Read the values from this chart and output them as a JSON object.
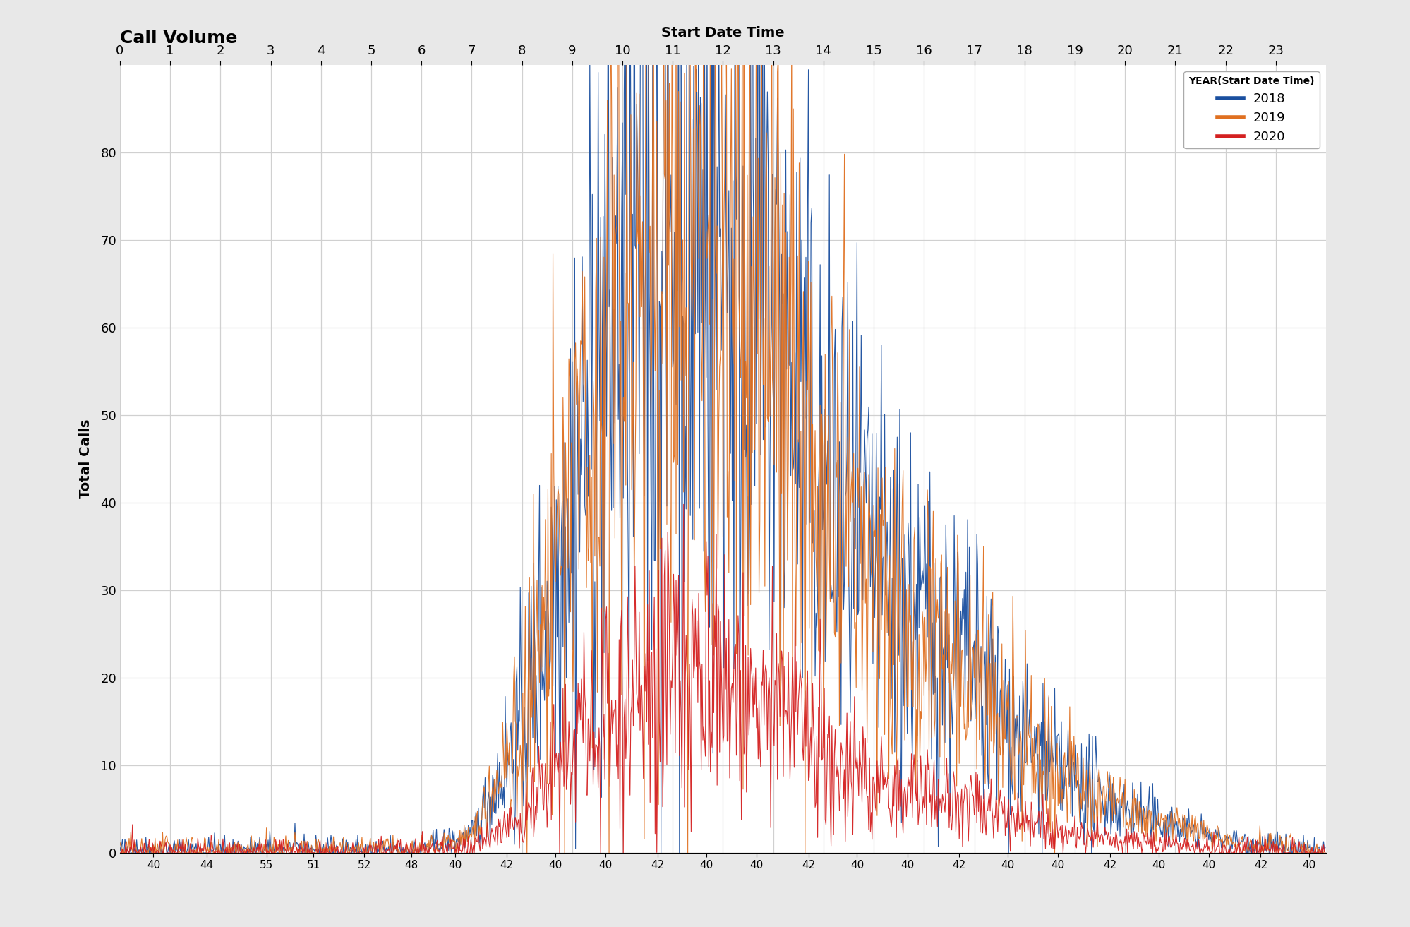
{
  "title": "Call Volume",
  "xlabel": "Start Date Time",
  "ylabel": "Total Calls",
  "hours": [
    0,
    1,
    2,
    3,
    4,
    5,
    6,
    7,
    8,
    9,
    10,
    11,
    12,
    13,
    14,
    15,
    16,
    17,
    18,
    19,
    20,
    21,
    22,
    23
  ],
  "minutes_per_hour": 60,
  "colors": {
    "2018": "#1a4f9f",
    "2019": "#e07020",
    "2020": "#d42020"
  },
  "legend_title": "YEAR(Start Date Time)",
  "ylim": [
    0,
    90
  ],
  "yticks": [
    0,
    10,
    20,
    30,
    40,
    50,
    60,
    70,
    80
  ],
  "background_color": "#ffffff",
  "outer_bg": "#e8e8e8",
  "grid_color": "#d0d0d0",
  "seed": 42,
  "minute_labels": [
    "40",
    "44",
    "55",
    "51",
    "52",
    "48",
    "40",
    "42",
    "40",
    "40",
    "42",
    "40",
    "40",
    "42",
    "40",
    "40",
    "42",
    "40",
    "40",
    "42",
    "40",
    "40",
    "42",
    "40"
  ],
  "minute_values": [
    40,
    44,
    55,
    51,
    52,
    48,
    40,
    42,
    40,
    40,
    42,
    40,
    40,
    42,
    40,
    40,
    42,
    40,
    40,
    42,
    40,
    40,
    42,
    40
  ]
}
